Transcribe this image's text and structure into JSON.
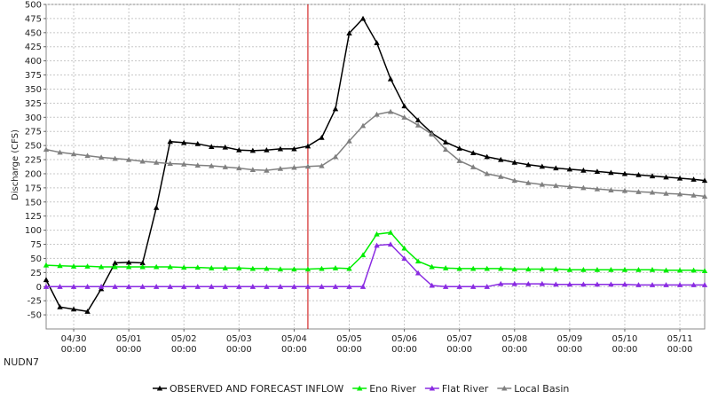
{
  "chart_data": {
    "type": "line",
    "station_label": "NUDN7",
    "ylabel": "Discharge (CFS)",
    "xlabel": "",
    "ylim": [
      -75,
      500
    ],
    "yticks": [
      -50,
      -25,
      0,
      25,
      50,
      75,
      100,
      125,
      150,
      175,
      200,
      225,
      250,
      275,
      300,
      325,
      350,
      375,
      400,
      425,
      450,
      475,
      500
    ],
    "xlim": [
      0,
      11.95
    ],
    "x_unit": "days since 04/29 12:00",
    "x_ticks": [
      {
        "x": 0.5,
        "date": "04/30",
        "time": "00:00"
      },
      {
        "x": 1.5,
        "date": "05/01",
        "time": "00:00"
      },
      {
        "x": 2.5,
        "date": "05/02",
        "time": "00:00"
      },
      {
        "x": 3.5,
        "date": "05/03",
        "time": "00:00"
      },
      {
        "x": 4.5,
        "date": "05/04",
        "time": "00:00"
      },
      {
        "x": 5.5,
        "date": "05/05",
        "time": "00:00"
      },
      {
        "x": 6.5,
        "date": "05/06",
        "time": "00:00"
      },
      {
        "x": 7.5,
        "date": "05/07",
        "time": "00:00"
      },
      {
        "x": 8.5,
        "date": "05/08",
        "time": "00:00"
      },
      {
        "x": 9.5,
        "date": "05/09",
        "time": "00:00"
      },
      {
        "x": 10.5,
        "date": "05/10",
        "time": "00:00"
      },
      {
        "x": 11.5,
        "date": "05/11",
        "time": "00:00"
      }
    ],
    "grid": true,
    "legend_position": "bottom-center",
    "current_time_marker": {
      "x": 4.75,
      "color": "#cc0000"
    },
    "series": [
      {
        "name": "OBSERVED AND FORECAST INFLOW",
        "color": "#000000",
        "x": [
          0,
          0.25,
          0.5,
          0.75,
          1.0,
          1.25,
          1.5,
          1.75,
          2.0,
          2.25,
          2.5,
          2.75,
          3.0,
          3.25,
          3.5,
          3.75,
          4.0,
          4.25,
          4.5,
          4.75,
          5.0,
          5.25,
          5.5,
          5.75,
          6.0,
          6.25,
          6.5,
          6.75,
          7.0,
          7.25,
          7.5,
          7.75,
          8.0,
          8.25,
          8.5,
          8.75,
          9.0,
          9.25,
          9.5,
          9.75,
          10.0,
          10.25,
          10.5,
          10.75,
          11.0,
          11.25,
          11.5,
          11.75,
          11.95
        ],
        "values": [
          12,
          -36,
          -40,
          -44,
          -4,
          42,
          43,
          42,
          140,
          257,
          255,
          253,
          248,
          247,
          242,
          241,
          242,
          244,
          244,
          249,
          264,
          315,
          449,
          475,
          432,
          368,
          320,
          295,
          272,
          256,
          245,
          237,
          230,
          225,
          220,
          216,
          213,
          210,
          208,
          206,
          204,
          202,
          200,
          198,
          196,
          194,
          192,
          190,
          188
        ]
      },
      {
        "name": "Eno River",
        "color": "#00ee00",
        "x": [
          0,
          0.25,
          0.5,
          0.75,
          1.0,
          1.25,
          1.5,
          1.75,
          2.0,
          2.25,
          2.5,
          2.75,
          3.0,
          3.25,
          3.5,
          3.75,
          4.0,
          4.25,
          4.5,
          4.75,
          5.0,
          5.25,
          5.5,
          5.75,
          6.0,
          6.25,
          6.5,
          6.75,
          7.0,
          7.25,
          7.5,
          7.75,
          8.0,
          8.25,
          8.5,
          8.75,
          9.0,
          9.25,
          9.5,
          9.75,
          10.0,
          10.25,
          10.5,
          10.75,
          11.0,
          11.25,
          11.5,
          11.75,
          11.95
        ],
        "values": [
          38,
          37,
          36,
          36,
          35,
          35,
          35,
          35,
          35,
          35,
          34,
          34,
          33,
          33,
          33,
          32,
          32,
          31,
          31,
          31,
          32,
          33,
          32,
          56,
          93,
          96,
          68,
          45,
          35,
          33,
          32,
          32,
          32,
          32,
          31,
          31,
          31,
          31,
          30,
          30,
          30,
          30,
          30,
          30,
          30,
          29,
          29,
          29,
          28
        ]
      },
      {
        "name": "Flat River",
        "color": "#8a2be2",
        "x": [
          0,
          0.25,
          0.5,
          0.75,
          1.0,
          1.25,
          1.5,
          1.75,
          2.0,
          2.25,
          2.5,
          2.75,
          3.0,
          3.25,
          3.5,
          3.75,
          4.0,
          4.25,
          4.5,
          4.75,
          5.0,
          5.25,
          5.5,
          5.75,
          6.0,
          6.25,
          6.5,
          6.75,
          7.0,
          7.25,
          7.5,
          7.75,
          8.0,
          8.25,
          8.5,
          8.75,
          9.0,
          9.25,
          9.5,
          9.75,
          10.0,
          10.25,
          10.5,
          10.75,
          11.0,
          11.25,
          11.5,
          11.75,
          11.95
        ],
        "values": [
          0,
          0,
          0,
          0,
          0,
          0,
          0,
          0,
          0,
          0,
          0,
          0,
          0,
          0,
          0,
          0,
          0,
          0,
          0,
          0,
          0,
          0,
          0,
          0,
          73,
          75,
          50,
          24,
          2,
          0,
          0,
          0,
          0,
          5,
          5,
          5,
          5,
          4,
          4,
          4,
          4,
          4,
          4,
          3,
          3,
          3,
          3,
          3,
          3
        ]
      },
      {
        "name": "Local Basin",
        "color": "#808080",
        "x": [
          0,
          0.25,
          0.5,
          0.75,
          1.0,
          1.25,
          1.5,
          1.75,
          2.0,
          2.25,
          2.5,
          2.75,
          3.0,
          3.25,
          3.5,
          3.75,
          4.0,
          4.25,
          4.5,
          4.75,
          5.0,
          5.25,
          5.5,
          5.75,
          6.0,
          6.25,
          6.5,
          6.75,
          7.0,
          7.25,
          7.5,
          7.75,
          8.0,
          8.25,
          8.5,
          8.75,
          9.0,
          9.25,
          9.5,
          9.75,
          10.0,
          10.25,
          10.5,
          10.75,
          11.0,
          11.25,
          11.5,
          11.75,
          11.95
        ],
        "values": [
          243,
          238,
          235,
          232,
          229,
          227,
          225,
          222,
          220,
          218,
          217,
          215,
          214,
          212,
          210,
          207,
          206,
          209,
          211,
          213,
          214,
          230,
          258,
          285,
          305,
          310,
          300,
          286,
          270,
          243,
          223,
          212,
          200,
          195,
          188,
          184,
          181,
          179,
          177,
          175,
          173,
          171,
          170,
          168,
          167,
          165,
          164,
          162,
          160
        ]
      }
    ]
  }
}
